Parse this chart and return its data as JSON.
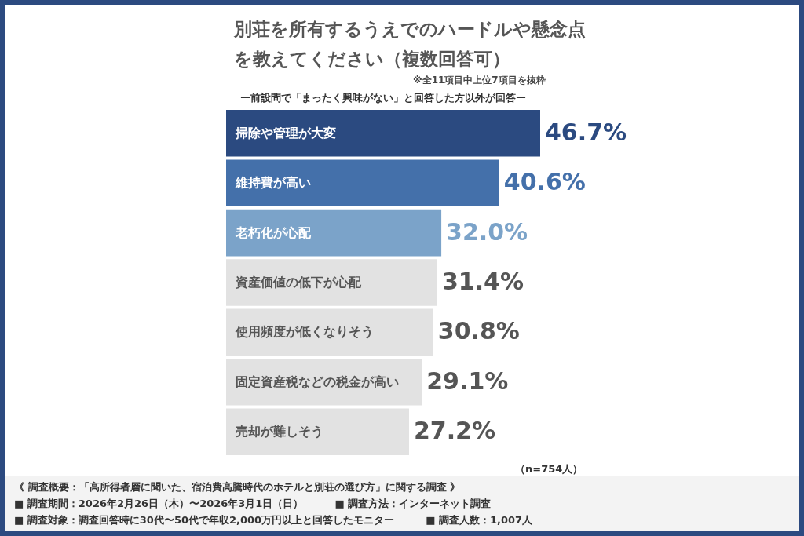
{
  "chart_data": {
    "type": "bar",
    "orientation": "horizontal",
    "title": "別荘を所有するうえでのハードルや懸念点を教えてください（複数回答可）",
    "subtitle": "※全11項目中上位7項目を抜粋",
    "categories": [
      "掃除や管理が大変",
      "維持費が高い",
      "老朽化が心配",
      "資産価値の低下が心配",
      "使用頻度が低くなりそう",
      "固定資産税などの税金が高い",
      "売却が難しそう"
    ],
    "values": [
      46.7,
      40.6,
      32.0,
      31.4,
      30.8,
      29.1,
      27.2
    ],
    "value_labels": [
      "46.7%",
      "40.6%",
      "32.0%",
      "31.4%",
      "30.8%",
      "29.1%",
      "27.2%"
    ],
    "colors": [
      "#2b4a80",
      "#4470aa",
      "#7ba3c9",
      "#e2e2e2",
      "#e2e2e2",
      "#e2e2e2",
      "#e2e2e2"
    ],
    "tick_labels": false,
    "grid": false,
    "annotations": [
      "ー前設問で「まったく興味がない」と回答した方以外が回答ー",
      "（n=754人）",
      "《 調査概要：「高所得者層に聞いた、宿泊費高騰時代のホテルと別荘の選び方」に関する調査 》",
      "■ 調査期間：2026年2月26日（木）〜2026年3月1日（日）",
      "■ 調査方法：インターネット調査",
      "■ 調査対象：調査回答時に30代〜50代で年収2,000万円以上と回答したモニター",
      "■ 調査人数：1,007人"
    ]
  }
}
